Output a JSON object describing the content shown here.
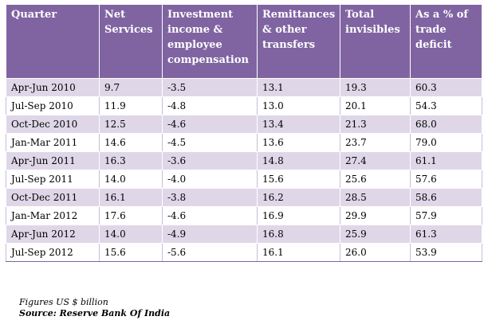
{
  "table": {
    "headers": [
      "Quarter",
      "Net Services",
      "Investment income & employee compensation",
      "Remittances & other transfers",
      "Total invisibles",
      "As a % of trade deficit"
    ],
    "rows": [
      [
        "Apr-Jun 2010",
        "9.7",
        "-3.5",
        "13.1",
        "19.3",
        "60.3"
      ],
      [
        "Jul-Sep 2010",
        "11.9",
        "-4.8",
        "13.0",
        "20.1",
        "54.3"
      ],
      [
        "Oct-Dec 2010",
        "12.5",
        "-4.6",
        "13.4",
        "21.3",
        "68.0"
      ],
      [
        "Jan-Mar 2011",
        "14.6",
        "-4.5",
        "13.6",
        "23.7",
        "79.0"
      ],
      [
        "Apr-Jun 2011",
        "16.3",
        "-3.6",
        "14.8",
        "27.4",
        "61.1"
      ],
      [
        "Jul-Sep 2011",
        "14.0",
        "-4.0",
        "15.6",
        "25.6",
        "57.6"
      ],
      [
        "Oct-Dec 2011",
        "16.1",
        "-3.8",
        "16.2",
        "28.5",
        "58.6"
      ],
      [
        "Jan-Mar 2012",
        "17.6",
        "-4.6",
        "16.9",
        "29.9",
        "57.9"
      ],
      [
        "Apr-Jun 2012",
        "14.0",
        "-4.9",
        "16.8",
        "25.9",
        "61.3"
      ],
      [
        "Jul-Sep 2012",
        "15.6",
        "-5.6",
        "16.1",
        "26.0",
        "53.9"
      ]
    ]
  },
  "notes": {
    "units": "Figures US $ billion",
    "source": "Source: Reserve Bank Of India"
  },
  "colors": {
    "header_bg": "#8064a2",
    "band_bg": "#dfd7e8"
  }
}
